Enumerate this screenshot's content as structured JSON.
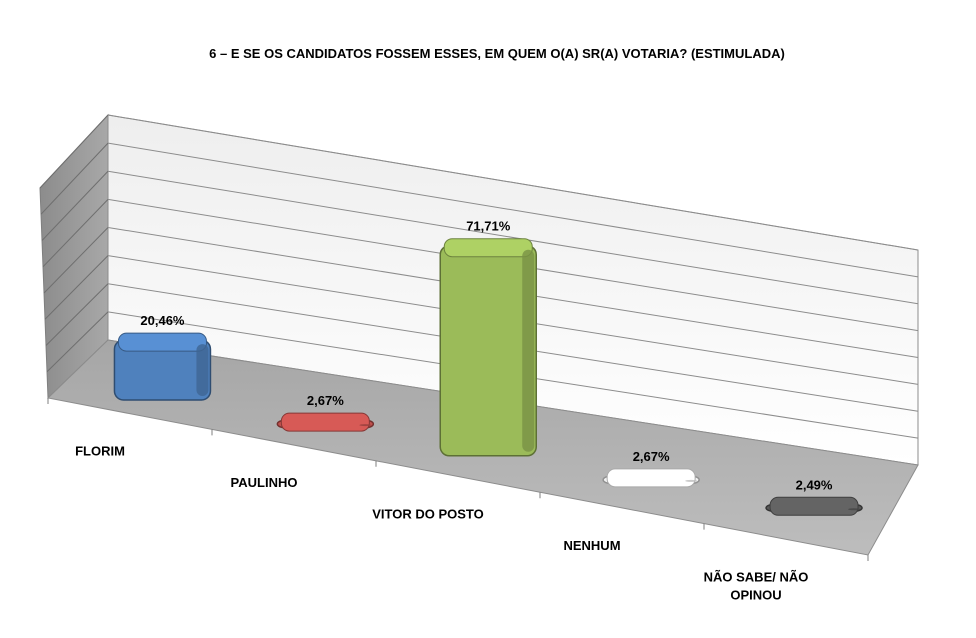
{
  "chart_data": {
    "type": "bar",
    "title": "6 – E SE OS CANDIDATOS FOSSEM ESSES, EM QUEM O(A) SR(A) VOTARIA? (ESTIMULADA)",
    "categories": [
      "FLORIM",
      "PAULINHO",
      "VITOR DO POSTO",
      "NENHUM",
      "NÃO SABE/ NÃO OPINOU"
    ],
    "category_lines": [
      [
        "FLORIM"
      ],
      [
        "PAULINHO"
      ],
      [
        "VITOR DO POSTO"
      ],
      [
        "NENHUM"
      ],
      [
        "NÃO SABE/ NÃO",
        "OPINOU"
      ]
    ],
    "values": [
      20.46,
      2.67,
      71.71,
      2.67,
      2.49
    ],
    "data_labels": [
      "20,46%",
      "2,67%",
      "71,71%",
      "2,67%",
      "2,49%"
    ],
    "colors": [
      "#4f81bd",
      "#c0504d",
      "#9bbb59",
      "#f2f2f2",
      "#595959"
    ],
    "ylim": [
      0,
      80
    ],
    "grid": true,
    "legend": "none",
    "style": "3d-column"
  }
}
